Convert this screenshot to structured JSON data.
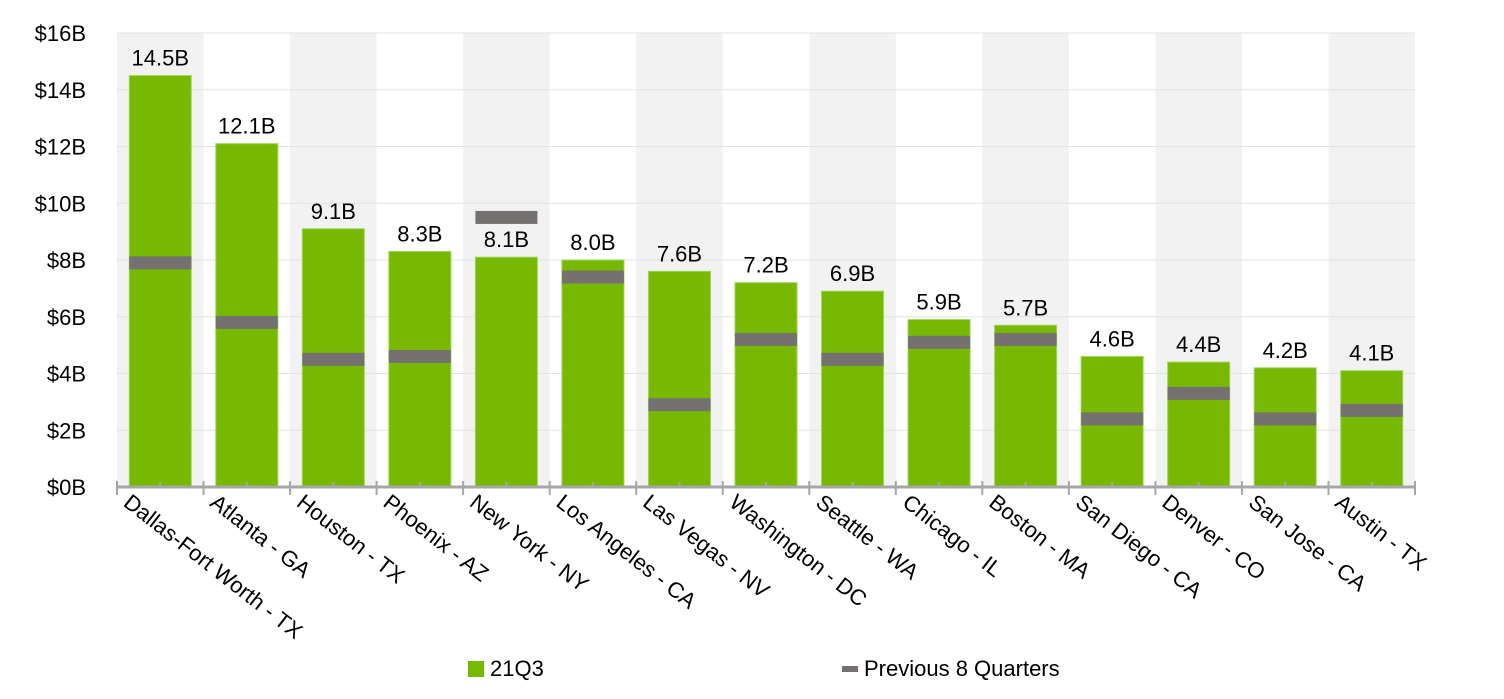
{
  "chart_data": {
    "type": "bar",
    "title": "",
    "xlabel": "",
    "ylabel": "",
    "ylim": [
      0,
      16
    ],
    "y_ticks": [
      "$0B",
      "$2B",
      "$4B",
      "$6B",
      "$8B",
      "$10B",
      "$12B",
      "$14B",
      "$16B"
    ],
    "grid": true,
    "legend_placement": "bottom",
    "categories": [
      "Dallas-Fort Worth - TX",
      "Atlanta - GA",
      "Houston - TX",
      "Phoenix - AZ",
      "New York - NY",
      "Los Angeles - CA",
      "Las Vegas - NV",
      "Washington - DC",
      "Seattle - WA",
      "Chicago - IL",
      "Boston - MA",
      "San Diego - CA",
      "Denver - CO",
      "San Jose - CA",
      "Austin - TX"
    ],
    "series": [
      {
        "name": "21Q3",
        "kind": "bar",
        "color": "#76b900",
        "values": [
          14.5,
          12.1,
          9.1,
          8.3,
          8.1,
          8.0,
          7.6,
          7.2,
          6.9,
          5.9,
          5.7,
          4.6,
          4.4,
          4.2,
          4.1
        ],
        "labels": [
          "14.5B",
          "12.1B",
          "9.1B",
          "8.3B",
          "8.1B",
          "8.0B",
          "7.6B",
          "7.2B",
          "6.9B",
          "5.9B",
          "5.7B",
          "4.6B",
          "4.4B",
          "4.2B",
          "4.1B"
        ]
      },
      {
        "name": "Previous 8 Quarters",
        "kind": "marker",
        "color": "#767171",
        "values": [
          7.9,
          5.8,
          4.5,
          4.6,
          9.5,
          7.4,
          2.9,
          5.2,
          4.5,
          5.1,
          5.2,
          2.4,
          3.3,
          2.4,
          2.7
        ]
      }
    ]
  }
}
